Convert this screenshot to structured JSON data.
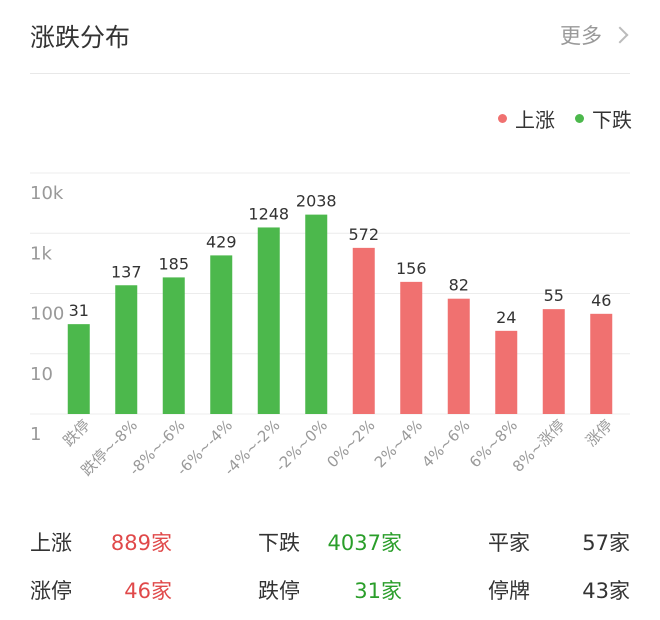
{
  "header": {
    "title": "涨跌分布",
    "more_label": "更多"
  },
  "legend": [
    {
      "label": "上涨",
      "color": "#f07170"
    },
    {
      "label": "下跌",
      "color": "#4cb84c"
    }
  ],
  "chart_data": {
    "type": "bar",
    "yscale": "log",
    "ylim": [
      1,
      10000
    ],
    "yticks": [
      "1",
      "10",
      "100",
      "1k",
      "10k"
    ],
    "categories": [
      "跌停",
      "跌停~-8%",
      "-8%~-6%",
      "-6%~-4%",
      "-4%~-2%",
      "-2%~0%",
      "0%~2%",
      "2%~4%",
      "4%~6%",
      "6%~8%",
      "8%~涨停",
      "涨停"
    ],
    "values": [
      31,
      137,
      185,
      429,
      1248,
      2038,
      572,
      156,
      82,
      24,
      55,
      46
    ],
    "series_by_category": [
      "下跌",
      "下跌",
      "下跌",
      "下跌",
      "下跌",
      "下跌",
      "上涨",
      "上涨",
      "上涨",
      "上涨",
      "上涨",
      "上涨"
    ],
    "colors": {
      "上涨": "#f07170",
      "下跌": "#4cb84c"
    },
    "grid": true,
    "legend_position": "top-right"
  },
  "stats": [
    {
      "label": "上涨",
      "value": "889家",
      "color": "#e0494a"
    },
    {
      "label": "下跌",
      "value": "4037家",
      "color": "#2a9e2a"
    },
    {
      "label": "平家",
      "value": "57家",
      "color": "#333333"
    },
    {
      "label": "涨停",
      "value": "46家",
      "color": "#e0494a"
    },
    {
      "label": "跌停",
      "value": "31家",
      "color": "#2a9e2a"
    },
    {
      "label": "停牌",
      "value": "43家",
      "color": "#333333"
    }
  ]
}
